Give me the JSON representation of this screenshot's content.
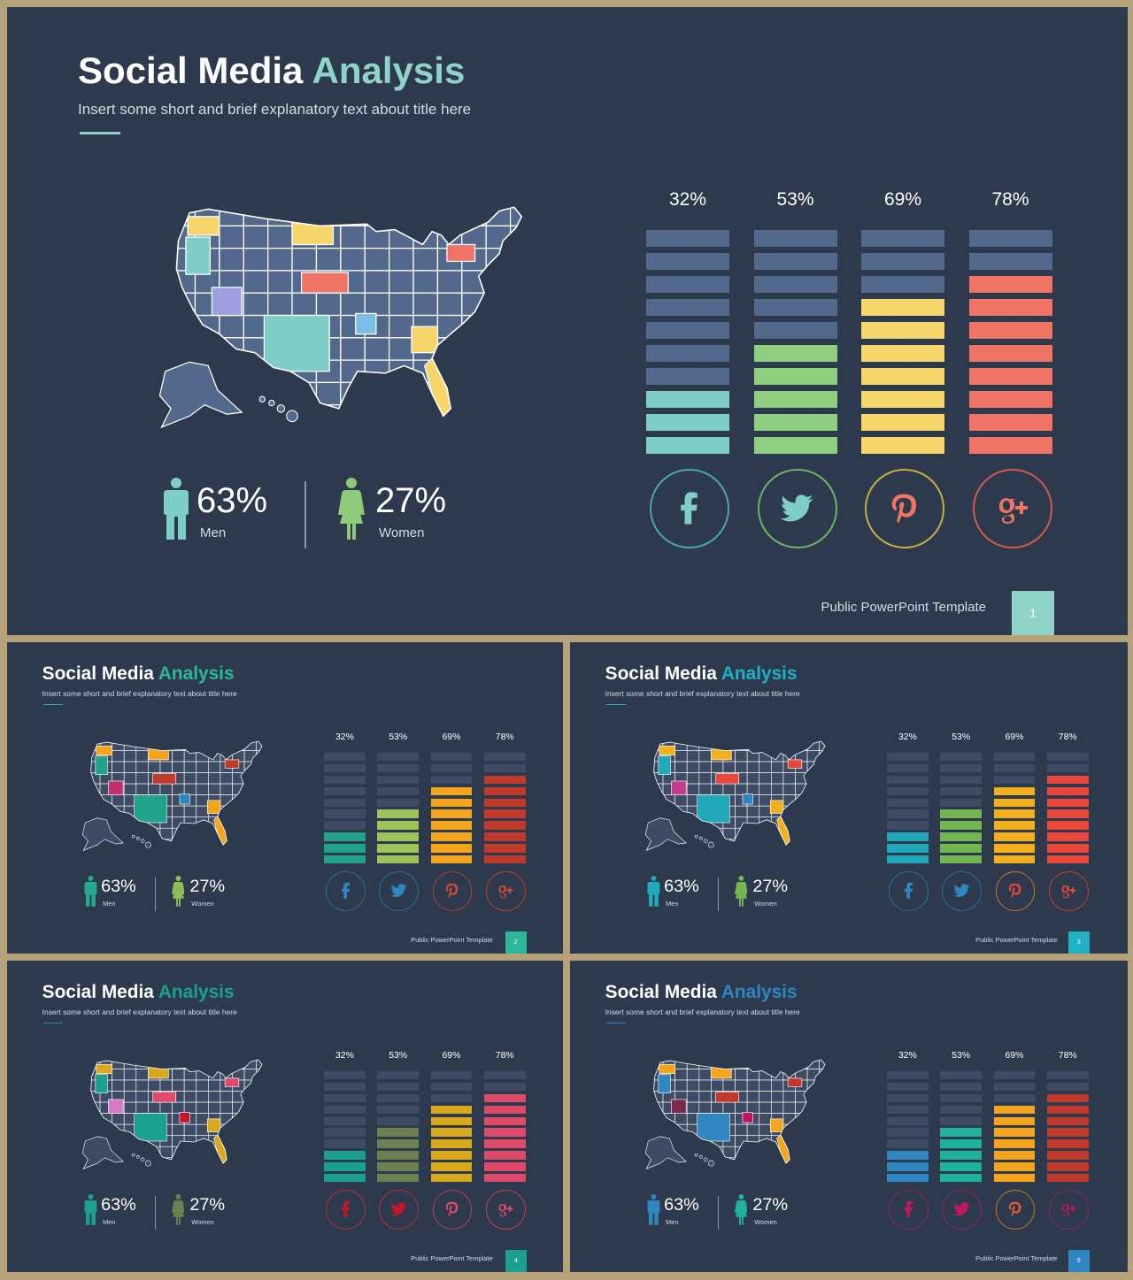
{
  "title_main": "Social Media",
  "title_accent": "Analysis",
  "subtitle": "Insert some short and brief explanatory text about title here",
  "footer": "Public PowerPoint Template",
  "men": {
    "value": "63%",
    "label": "Men"
  },
  "women": {
    "value": "27%",
    "label": "Women"
  },
  "bar_chart": {
    "labels": [
      "32%",
      "53%",
      "69%",
      "78%"
    ],
    "values": [
      32,
      53,
      69,
      78
    ],
    "segments_total": 10,
    "segments_filled": [
      3,
      5,
      7,
      8
    ]
  },
  "social_icons": [
    {
      "name": "facebook-icon",
      "glyph": "f"
    },
    {
      "name": "twitter-icon",
      "glyph": "t"
    },
    {
      "name": "pinterest-icon",
      "glyph": "p"
    },
    {
      "name": "google-plus-icon",
      "glyph": "g+"
    }
  ],
  "slides": [
    {
      "page": "1",
      "accent": "#8fd3c9",
      "men_color": "#7ecdc6",
      "women_color": "#8fc97a",
      "base": "#52698c",
      "fills": [
        "#7ecdc6",
        "#8fcf7f",
        "#f6d66b",
        "#f07465"
      ],
      "rings": [
        "#4aa89d",
        "#6fb36a",
        "#c9ae45",
        "#d15a4f"
      ],
      "icon_colors": [
        "#7ecdc6",
        "#7ecdc6",
        "#f07465",
        "#f07465"
      ],
      "state_colors": [
        "#f6d66b",
        "#7ecdc6",
        "#9d9ee0",
        "#f6d66b",
        "#f07465",
        "#7ecdc6",
        "#7bbde8",
        "#f6d66b",
        "#f07465"
      ]
    },
    {
      "page": "2",
      "accent": "#2bb89a",
      "men_color": "#26a88e",
      "women_color": "#8ebc58",
      "base": "#3d4c64",
      "fills": [
        "#21a38a",
        "#9ec459",
        "#f4a51c",
        "#c1392b"
      ],
      "rings": [
        "#2a6f92",
        "#2a6f92",
        "#b0432f",
        "#b0432f"
      ],
      "icon_colors": [
        "#2f86c0",
        "#2f86c0",
        "#d44a35",
        "#d44a35"
      ],
      "state_colors": [
        "#f4a51c",
        "#21a38a",
        "#c0306e",
        "#f4a51c",
        "#c1392b",
        "#21a38a",
        "#2f86c0",
        "#f4a51c",
        "#c1392b"
      ]
    },
    {
      "page": "3",
      "accent": "#1fb2c4",
      "men_color": "#1fa9b9",
      "women_color": "#74b64f",
      "base": "#3d4c64",
      "fills": [
        "#1fa9b9",
        "#74b64f",
        "#f2b01c",
        "#e8473a"
      ],
      "rings": [
        "#2a6f92",
        "#2a6f92",
        "#c27a27",
        "#c23b2f"
      ],
      "icon_colors": [
        "#2f86c0",
        "#2f86c0",
        "#e8473a",
        "#e8473a"
      ],
      "state_colors": [
        "#f2b01c",
        "#1fa9b9",
        "#c43c8d",
        "#f2b01c",
        "#e8473a",
        "#1fa9b9",
        "#2f86c0",
        "#f2b01c",
        "#e8473a"
      ]
    },
    {
      "page": "4",
      "accent": "#1b9f8e",
      "men_color": "#1b9f8e",
      "women_color": "#6a7f4d",
      "base": "#3d4c64",
      "fills": [
        "#1b9f8e",
        "#6b7f4f",
        "#d9a81c",
        "#e04a6a"
      ],
      "rings": [
        "#b0313a",
        "#b0313a",
        "#c23b5f",
        "#c23b5f"
      ],
      "icon_colors": [
        "#c0172b",
        "#c0172b",
        "#e04a6a",
        "#e04a6a"
      ],
      "state_colors": [
        "#d9a81c",
        "#1b9f8e",
        "#d879c8",
        "#d9a81c",
        "#e04a6a",
        "#1b9f8e",
        "#c0172b",
        "#d9a81c",
        "#e04a6a"
      ]
    },
    {
      "page": "5",
      "accent": "#2f86c0",
      "men_color": "#2f86c0",
      "women_color": "#1fb29a",
      "base": "#3d4c64",
      "fills": [
        "#2f86c0",
        "#1fb29a",
        "#f4a51c",
        "#c1392b"
      ],
      "rings": [
        "#8a2a4a",
        "#8a2a4a",
        "#c27a27",
        "#8a2a4a"
      ],
      "icon_colors": [
        "#c2185b",
        "#c2185b",
        "#e25b3a",
        "#c2185b"
      ],
      "state_colors": [
        "#f4a51c",
        "#2f86c0",
        "#7a2a4a",
        "#f4a51c",
        "#c1392b",
        "#2f86c0",
        "#c2185b",
        "#f4a51c",
        "#c1392b"
      ]
    }
  ]
}
